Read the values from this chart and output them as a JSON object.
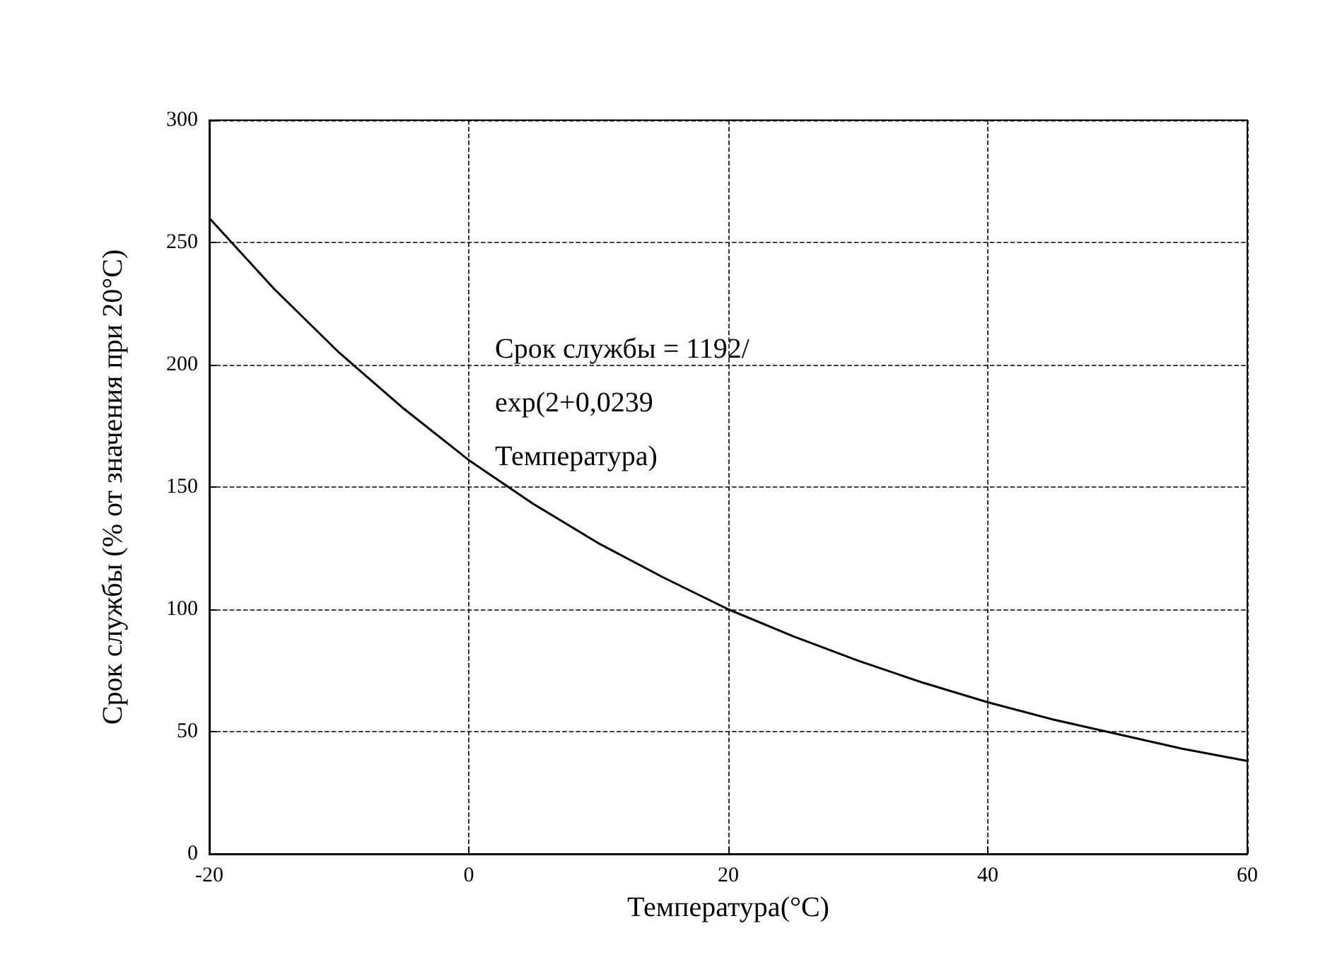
{
  "chart_data": {
    "type": "line",
    "xlabel": "Температура(°C)",
    "ylabel": "Срок службы (% от значения при 20°C)",
    "annotations": [
      "Срок службы = 1192/exp(2+0,0239 Температура)"
    ],
    "x": [
      -20,
      -15,
      -10,
      -5,
      0,
      5,
      10,
      15,
      20,
      25,
      30,
      35,
      40,
      45,
      50,
      55,
      60
    ],
    "series": [
      {
        "color": "#000000",
        "values": [
          260,
          231,
          205,
          182,
          161,
          143,
          127,
          113,
          100,
          89,
          79,
          70,
          62,
          55,
          49,
          43,
          38
        ]
      }
    ],
    "xlim": [
      -20,
      60
    ],
    "xticks": [
      -20,
      0,
      20,
      40,
      60
    ],
    "ylim": [
      0,
      300
    ],
    "yticks": [
      0,
      50,
      100,
      150,
      200,
      250,
      300
    ],
    "grid": true,
    "marker": "none",
    "line_style": "solid"
  }
}
